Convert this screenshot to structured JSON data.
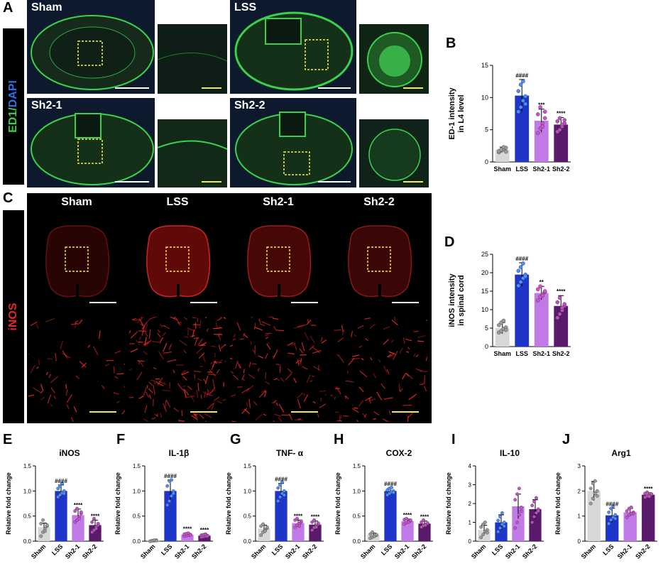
{
  "panel_letters": {
    "A": "A",
    "B": "B",
    "C": "C",
    "D": "D",
    "E": "E",
    "F": "F",
    "G": "G",
    "H": "H",
    "I": "I",
    "J": "J"
  },
  "panelA": {
    "stain_part1": "ED1/",
    "stain_part2": "DAPI",
    "labels": [
      "Sham",
      "LSS",
      "Sh2-1",
      "Sh2-2"
    ]
  },
  "panelC": {
    "stain": "iNOS",
    "labels": [
      "Sham",
      "LSS",
      "Sh2-1",
      "Sh2-2"
    ]
  },
  "colors": {
    "sham": "#d7d7d7",
    "lss": "#1f35c9",
    "sh21": "#c07ae8",
    "sh22": "#5a1a6b",
    "ed1_green": "#3ad24c",
    "dapi_blue": "#2f6fe8",
    "inos_red": "#e02a2a"
  },
  "chart_data": [
    {
      "id": "B",
      "type": "bar",
      "ylabel": "ED-1 intensity\nin L4 level",
      "categories": [
        "Sham",
        "LSS",
        "Sh2-1",
        "Sh2-2"
      ],
      "values": [
        1.9,
        10.3,
        6.4,
        5.8
      ],
      "errors": [
        0.4,
        2.5,
        1.8,
        1.1
      ],
      "significance": [
        "",
        "####",
        "***",
        "****"
      ],
      "yticks": [
        0,
        5,
        10,
        15
      ],
      "ylim": [
        0,
        15
      ],
      "points": [
        [
          1.5,
          1.8,
          2.0,
          2.2,
          1.7,
          1.9,
          2.3,
          1.6
        ],
        [
          7.8,
          8.5,
          9.5,
          10.2,
          11.0,
          12.0,
          12.5,
          9.0
        ],
        [
          4.5,
          5.2,
          6.0,
          6.8,
          7.4,
          8.5,
          5.5,
          7.8
        ],
        [
          4.7,
          5.0,
          5.5,
          6.0,
          6.3,
          6.8,
          5.8,
          6.5
        ]
      ],
      "rotate_ticks": false
    },
    {
      "id": "D",
      "type": "bar",
      "ylabel": "iNOS intensity\nin spinal cord",
      "categories": [
        "Sham",
        "LSS",
        "Sh2-1",
        "Sh2-2"
      ],
      "values": [
        5.0,
        19.5,
        14.5,
        11.0
      ],
      "errors": [
        1.5,
        3.2,
        1.8,
        2.8
      ],
      "significance": [
        "",
        "####",
        "**",
        "****"
      ],
      "yticks": [
        0,
        5,
        10,
        15,
        20,
        25
      ],
      "ylim": [
        0,
        25
      ],
      "points": [
        [
          3.8,
          4.2,
          4.8,
          5.2,
          5.8,
          6.5,
          7.0,
          4.5
        ],
        [
          16.5,
          17.5,
          18.5,
          19.5,
          20.5,
          21.5,
          22.5,
          19.0
        ],
        [
          12.5,
          13.5,
          14.2,
          14.8,
          15.5,
          16.3,
          13.8,
          15.0
        ],
        [
          7.8,
          8.8,
          9.8,
          11.0,
          12.0,
          13.2,
          10.5,
          11.5
        ]
      ],
      "rotate_ticks": false
    },
    {
      "id": "E",
      "type": "bar",
      "title": "iNOS",
      "ylabel": "Relative fold change",
      "categories": [
        "Sham",
        "LSS",
        "Sh2-1",
        "Sh2-2"
      ],
      "values": [
        0.28,
        1.0,
        0.52,
        0.32
      ],
      "errors": [
        0.08,
        0.12,
        0.12,
        0.1
      ],
      "significance": [
        "",
        "####",
        "****",
        "****"
      ],
      "yticks": [
        0.0,
        0.5,
        1.0,
        1.5
      ],
      "yticklabels": [
        "0.0",
        "0.5",
        "1.0",
        "1.5"
      ],
      "ylim": [
        0,
        1.5
      ],
      "points": [
        [
          0.1,
          0.18,
          0.25,
          0.3,
          0.35,
          0.42,
          0.2,
          0.32
        ],
        [
          0.88,
          0.92,
          0.96,
          1.0,
          1.05,
          1.1,
          1.15,
          0.95
        ],
        [
          0.38,
          0.42,
          0.48,
          0.55,
          0.6,
          0.65,
          0.45,
          0.58
        ],
        [
          0.18,
          0.22,
          0.28,
          0.32,
          0.38,
          0.45,
          0.25,
          0.35
        ]
      ],
      "rotate_ticks": true
    },
    {
      "id": "F",
      "type": "bar",
      "title": "IL-1β",
      "ylabel": "Relative fold change",
      "categories": [
        "Sham",
        "LSS",
        "Sh2-1",
        "Sh2-2"
      ],
      "values": [
        0.01,
        1.0,
        0.13,
        0.11
      ],
      "errors": [
        0.01,
        0.22,
        0.03,
        0.03
      ],
      "significance": [
        "",
        "####",
        "****",
        "****"
      ],
      "yticks": [
        0.0,
        0.5,
        1.0,
        1.5
      ],
      "yticklabels": [
        "0.0",
        "0.5",
        "1.0",
        "1.5"
      ],
      "ylim": [
        0,
        1.5
      ],
      "points": [
        [
          0.0,
          0.01,
          0.01,
          0.02,
          0.0,
          0.01,
          0.02,
          0.01
        ],
        [
          0.72,
          0.8,
          0.9,
          1.0,
          1.1,
          1.2,
          1.22,
          0.95
        ],
        [
          0.1,
          0.11,
          0.12,
          0.13,
          0.14,
          0.15,
          0.16,
          0.12
        ],
        [
          0.08,
          0.09,
          0.1,
          0.11,
          0.12,
          0.13,
          0.14,
          0.1
        ]
      ],
      "rotate_ticks": true
    },
    {
      "id": "G",
      "type": "bar",
      "title": "TNF- α",
      "ylabel": "Relative fold change",
      "categories": [
        "Sham",
        "LSS",
        "Sh2-1",
        "Sh2-2"
      ],
      "values": [
        0.25,
        1.0,
        0.36,
        0.33
      ],
      "errors": [
        0.07,
        0.15,
        0.06,
        0.07
      ],
      "significance": [
        "",
        "####",
        "****",
        "****"
      ],
      "yticks": [
        0.0,
        0.5,
        1.0,
        1.5
      ],
      "yticklabels": [
        "0.0",
        "0.5",
        "1.0",
        "1.5"
      ],
      "ylim": [
        0,
        1.5
      ],
      "points": [
        [
          0.12,
          0.18,
          0.22,
          0.26,
          0.3,
          0.34,
          0.2,
          0.28
        ],
        [
          0.8,
          0.88,
          0.95,
          1.0,
          1.06,
          1.12,
          1.18,
          0.92
        ],
        [
          0.28,
          0.32,
          0.35,
          0.38,
          0.42,
          0.45,
          0.3,
          0.4
        ],
        [
          0.22,
          0.27,
          0.3,
          0.34,
          0.38,
          0.42,
          0.28,
          0.36
        ]
      ],
      "rotate_ticks": true
    },
    {
      "id": "H",
      "type": "bar",
      "title": "COX-2",
      "ylabel": "Relative fold change",
      "categories": [
        "Sham",
        "LSS",
        "Sh2-1",
        "Sh2-2"
      ],
      "values": [
        0.12,
        1.0,
        0.4,
        0.35
      ],
      "errors": [
        0.04,
        0.06,
        0.04,
        0.05
      ],
      "significance": [
        "",
        "####",
        "****",
        "****"
      ],
      "yticks": [
        0.0,
        0.5,
        1.0,
        1.5
      ],
      "yticklabels": [
        "0.0",
        "0.5",
        "1.0",
        "1.5"
      ],
      "ylim": [
        0,
        1.5
      ],
      "points": [
        [
          0.06,
          0.08,
          0.1,
          0.12,
          0.14,
          0.18,
          0.1,
          0.13
        ],
        [
          0.92,
          0.95,
          0.98,
          1.0,
          1.02,
          1.05,
          1.07,
          0.97
        ],
        [
          0.34,
          0.37,
          0.39,
          0.41,
          0.43,
          0.45,
          0.38,
          0.42
        ],
        [
          0.28,
          0.31,
          0.33,
          0.35,
          0.38,
          0.42,
          0.32,
          0.36
        ]
      ],
      "rotate_ticks": true
    },
    {
      "id": "I",
      "type": "bar",
      "title": "IL-10",
      "ylabel": "Relative fold change",
      "categories": [
        "Sham",
        "LSS",
        "Sh2-1",
        "Sh2-2"
      ],
      "values": [
        0.6,
        1.0,
        1.85,
        1.7
      ],
      "errors": [
        0.25,
        0.4,
        0.65,
        0.5
      ],
      "significance": [
        "",
        "",
        "",
        ""
      ],
      "yticks": [
        0,
        1,
        2,
        3,
        4
      ],
      "ylim": [
        0,
        4
      ],
      "points": [
        [
          0.2,
          0.35,
          0.5,
          0.6,
          0.75,
          0.9,
          1.0,
          0.45
        ],
        [
          0.5,
          0.7,
          0.9,
          1.0,
          1.1,
          1.3,
          1.5,
          0.8
        ],
        [
          0.7,
          1.0,
          1.4,
          1.8,
          2.2,
          2.5,
          2.8,
          1.6
        ],
        [
          1.0,
          1.3,
          1.5,
          1.7,
          1.9,
          2.1,
          2.3,
          1.6
        ]
      ],
      "rotate_ticks": true
    },
    {
      "id": "J",
      "type": "bar",
      "title": "Arg1",
      "ylabel": "Relative fold change",
      "categories": [
        "Sham",
        "LSS",
        "Sh2-1",
        "Sh2-2"
      ],
      "values": [
        2.0,
        1.03,
        1.15,
        1.85
      ],
      "errors": [
        0.38,
        0.28,
        0.15,
        0.08
      ],
      "significance": [
        "",
        "####",
        "",
        "****"
      ],
      "yticks": [
        0,
        1,
        2,
        3
      ],
      "ylim": [
        0,
        3
      ],
      "points": [
        [
          1.5,
          1.7,
          1.9,
          2.0,
          2.1,
          2.3,
          2.4,
          1.8
        ],
        [
          0.7,
          0.85,
          0.95,
          1.05,
          1.15,
          1.3,
          1.4,
          0.9
        ],
        [
          0.95,
          1.05,
          1.1,
          1.15,
          1.2,
          1.3,
          1.35,
          1.1
        ],
        [
          1.75,
          1.8,
          1.83,
          1.86,
          1.9,
          1.95,
          1.78,
          1.88
        ]
      ],
      "rotate_ticks": true
    }
  ]
}
